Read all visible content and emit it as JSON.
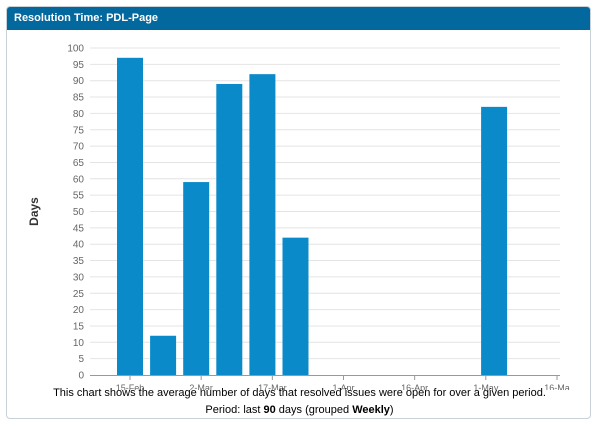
{
  "gadget": {
    "title": "Resolution Time: PDL-Page"
  },
  "caption": {
    "description": "This chart shows the average number of days that resolved issues were open for over a given period.",
    "period_prefix": "Period: last ",
    "period_days": "90",
    "period_middle": " days (grouped ",
    "period_group": "Weekly",
    "period_suffix": ")"
  },
  "colors": {
    "header": "#03689e",
    "bar": "#0a8ac9",
    "grid": "#e4e4e4",
    "axis": "#999999",
    "tick_text": "#666666"
  },
  "chart_data": {
    "type": "bar",
    "ylabel": "Days",
    "xlabel": "",
    "ylim": [
      0,
      100
    ],
    "ytick_step": 5,
    "grid": true,
    "x_tick_labels": [
      "15-Feb",
      "2-Mar",
      "17-Mar",
      "1-Apr",
      "16-Apr",
      "1-May",
      "16-Ma"
    ],
    "bars": [
      {
        "week": 1,
        "value": 97
      },
      {
        "week": 2,
        "value": 12
      },
      {
        "week": 3,
        "value": 59
      },
      {
        "week": 4,
        "value": 89
      },
      {
        "week": 5,
        "value": 92
      },
      {
        "week": 6,
        "value": 42
      },
      {
        "week": 7,
        "value": 0
      },
      {
        "week": 8,
        "value": 0
      },
      {
        "week": 9,
        "value": 0
      },
      {
        "week": 10,
        "value": 0
      },
      {
        "week": 11,
        "value": 0
      },
      {
        "week": 12,
        "value": 82
      },
      {
        "week": 13,
        "value": 0
      }
    ]
  }
}
